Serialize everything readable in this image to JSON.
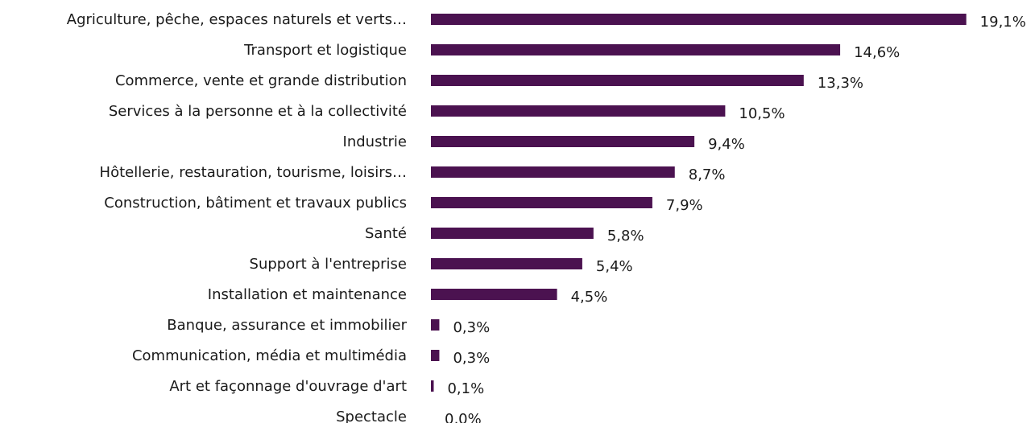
{
  "chart_data": {
    "type": "barh",
    "categories": [
      "Agriculture, pêche, espaces naturels et verts…",
      "Transport et logistique",
      "Commerce, vente et grande distribution",
      "Services à la personne et à la collectivité",
      "Industrie",
      "Hôtellerie, restauration, tourisme, loisirs…",
      "Construction, bâtiment et travaux publics",
      "Santé",
      "Support à l'entreprise",
      "Installation et maintenance",
      "Banque, assurance et immobilier",
      "Communication, média et multimédia",
      "Art et façonnage d'ouvrage d'art",
      "Spectacle"
    ],
    "values": [
      19.1,
      14.6,
      13.3,
      10.5,
      9.4,
      8.7,
      7.9,
      5.8,
      5.4,
      4.5,
      0.3,
      0.3,
      0.1,
      0.0
    ],
    "value_labels": [
      "19,1%",
      "14,6%",
      "13,3%",
      "10,5%",
      "9,4%",
      "8,7%",
      "7,9%",
      "5,8%",
      "5,4%",
      "4,5%",
      "0,3%",
      "0,3%",
      "0,1%",
      "0,0%"
    ],
    "color": "#4b1250",
    "xlim": [
      0,
      20
    ]
  }
}
